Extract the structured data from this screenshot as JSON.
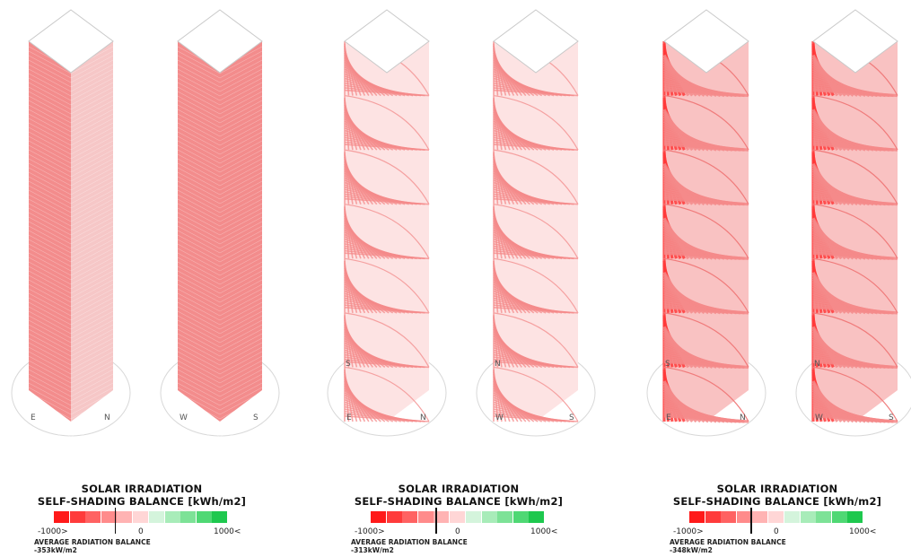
{
  "colors": {
    "neg_scale": [
      "#ff1a1a",
      "#ff3b3b",
      "#ff6262",
      "#ff8b8b",
      "#ffb3b3",
      "#ffd6d6"
    ],
    "pos_scale": [
      "#d4f4dc",
      "#a8ecb9",
      "#7de297",
      "#4fd874",
      "#1ec84e"
    ],
    "tower_fill": "#f48f8f",
    "tower_light": "#f6c9c9",
    "line": "#ffffff"
  },
  "towers": [
    {
      "label_left": "E",
      "label_right": "N",
      "label_left_back": "",
      "label_right_back": ""
    },
    {
      "label_left": "W",
      "label_right": "S",
      "label_left_back": "",
      "label_right_back": ""
    },
    {
      "label_left": "E",
      "label_right": "N",
      "label_left_back": "S",
      "label_right_back": ""
    },
    {
      "label_left": "W",
      "label_right": "S",
      "label_left_back": "N",
      "label_right_back": ""
    },
    {
      "label_left": "E",
      "label_right": "N",
      "label_left_back": "S",
      "label_right_back": ""
    },
    {
      "label_left": "W",
      "label_right": "S",
      "label_left_back": "N",
      "label_right_back": ""
    }
  ],
  "legends": [
    {
      "title_line1": "SOLAR IRRADIATION",
      "title_line2": "SELF-SHADING BALANCE [kWh/m2]",
      "min_label": "-1000>",
      "zero_label": "0",
      "max_label": "1000<",
      "avg_title": "AVERAGE RADIATION BALANCE",
      "avg_value": "-353kW/m2",
      "avg_number": -353
    },
    {
      "title_line1": "SOLAR IRRADIATION",
      "title_line2": "SELF-SHADING BALANCE [kWh/m2]",
      "min_label": "-1000>",
      "zero_label": "0",
      "max_label": "1000<",
      "avg_title": "AVERAGE RADIATION BALANCE",
      "avg_value": "-313kW/m2",
      "avg_number": -313
    },
    {
      "title_line1": "SOLAR IRRADIATION",
      "title_line2": "SELF-SHADING BALANCE [kWh/m2]",
      "min_label": "-1000>",
      "zero_label": "0",
      "max_label": "1000<",
      "avg_title": "AVERAGE RADIATION BALANCE",
      "avg_value": "-348kW/m2",
      "avg_number": -348
    }
  ]
}
